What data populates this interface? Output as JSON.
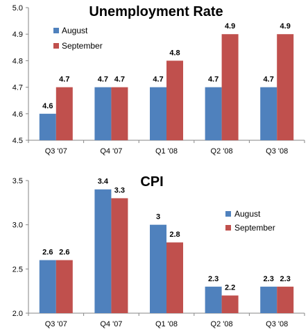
{
  "colors": {
    "august": "#4F81BD",
    "september": "#C0504D",
    "axis": "#868686"
  },
  "chart_data": [
    {
      "type": "bar",
      "title": "Unemployment Rate",
      "categories": [
        "Q3 '07",
        "Q4 '07",
        "Q1 '08",
        "Q2 '08",
        "Q3 '08"
      ],
      "series": [
        {
          "name": "August",
          "values": [
            4.6,
            4.7,
            4.7,
            4.7,
            4.7
          ]
        },
        {
          "name": "September",
          "values": [
            4.7,
            4.7,
            4.8,
            4.9,
            4.9
          ]
        }
      ],
      "ylim": [
        4.5,
        5.0
      ],
      "yticks": [
        "4.5",
        "4.6",
        "4.7",
        "4.8",
        "4.9",
        "5.0"
      ],
      "ytick_values": [
        4.5,
        4.6,
        4.7,
        4.8,
        4.9,
        5.0
      ],
      "value_labels": [
        [
          "4.6",
          "4.7",
          "4.7",
          "4.7",
          "4.7"
        ],
        [
          "4.7",
          "4.7",
          "4.8",
          "4.9",
          "4.9"
        ]
      ],
      "legend": "top-left",
      "grid": false
    },
    {
      "type": "bar",
      "title": "CPI",
      "categories": [
        "Q3 '07",
        "Q4 '07",
        "Q1 '08",
        "Q2 '08",
        "Q3 '08"
      ],
      "series": [
        {
          "name": "August",
          "values": [
            2.6,
            3.4,
            3.0,
            2.3,
            2.3
          ]
        },
        {
          "name": "September",
          "values": [
            2.6,
            3.3,
            2.8,
            2.2,
            2.3
          ]
        }
      ],
      "ylim": [
        2.0,
        3.5
      ],
      "yticks": [
        "2.0",
        "2.5",
        "3.0",
        "3.5"
      ],
      "ytick_values": [
        2.0,
        2.5,
        3.0,
        3.5
      ],
      "value_labels": [
        [
          "2.6",
          "3.4",
          "3",
          "2.3",
          "2.3"
        ],
        [
          "2.6",
          "3.3",
          "2.8",
          "2.2",
          "2.3"
        ]
      ],
      "legend": "right",
      "grid": false
    }
  ]
}
